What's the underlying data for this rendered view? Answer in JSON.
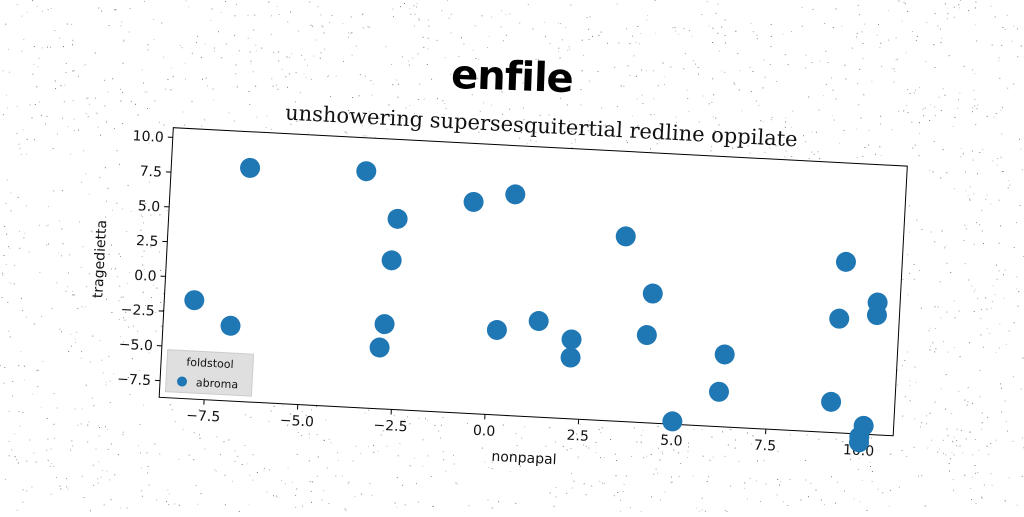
{
  "suptitle": "enfile",
  "chart_data": {
    "type": "scatter",
    "title": "unshowering supersesquitertial redline oppilate",
    "xlabel": "nonpapal",
    "ylabel": "tragedietta",
    "xlim": [
      -8.7,
      10.9
    ],
    "ylim": [
      -8.7,
      10.7
    ],
    "xticks": [
      -7.5,
      -5.0,
      -2.5,
      0.0,
      2.5,
      5.0,
      7.5,
      10.0
    ],
    "xtick_labels": [
      "−7.5",
      "−5.0",
      "−2.5",
      "0.0",
      "2.5",
      "5.0",
      "7.5",
      "10.0"
    ],
    "yticks": [
      -7.5,
      -5.0,
      -2.5,
      0.0,
      2.5,
      5.0,
      7.5,
      10.0
    ],
    "ytick_labels": [
      "−7.5",
      "−5.0",
      "−2.5",
      "0.0",
      "2.5",
      "5.0",
      "7.5",
      "10.0"
    ],
    "grid": false,
    "legend": {
      "title": "foldstool",
      "placement": "lower-left"
    },
    "colors": {
      "series": "#1f77b4"
    },
    "series": [
      {
        "name": "abroma",
        "x": [
          -6.6,
          -3.5,
          -2.6,
          -2.7,
          -0.6,
          0.5,
          -7.9,
          -6.9,
          -2.8,
          -2.9,
          0.2,
          1.3,
          2.2,
          2.2,
          3.5,
          4.3,
          4.2,
          5.0,
          6.2,
          6.3,
          9.2,
          9.4,
          9.3,
          10.3,
          10.3,
          10.0,
          10.0,
          10.1
        ],
        "y": [
          8.1,
          8.3,
          5.0,
          2.0,
          6.5,
          7.2,
          -1.6,
          -3.3,
          -2.6,
          -4.3,
          -2.6,
          -1.8,
          -3.0,
          -4.3,
          4.6,
          0.6,
          -2.4,
          -8.5,
          -6.2,
          -3.5,
          -6.5,
          3.6,
          -0.5,
          0.8,
          -0.1,
          -9.3,
          -8.9,
          -8.1
        ]
      }
    ]
  }
}
